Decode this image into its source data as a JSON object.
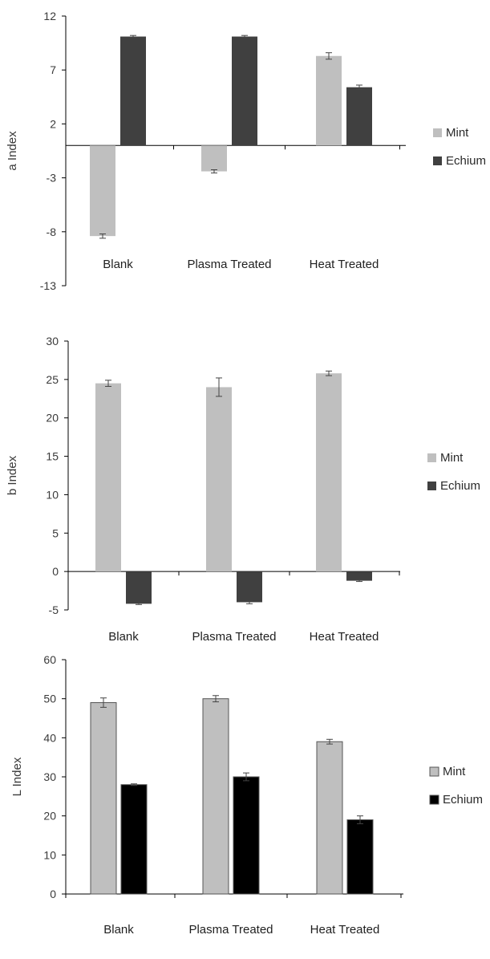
{
  "chart_data": [
    {
      "type": "bar",
      "title": "",
      "xlabel": "",
      "ylabel": "a Index",
      "ylim": [
        -13,
        12
      ],
      "yticks": [
        12,
        7,
        2,
        -3,
        -8,
        -13
      ],
      "categories": [
        "Blank",
        "Plasma Treated",
        "Heat Treated"
      ],
      "category_labels_position": "inside-bottom",
      "grid": false,
      "legend_position": "right",
      "series": [
        {
          "name": "Mint",
          "values": [
            -8.4,
            -2.4,
            8.3
          ],
          "errors": [
            0.2,
            0.15,
            0.3
          ],
          "color": "#bfbfbf"
        },
        {
          "name": "Echium",
          "values": [
            10.1,
            10.1,
            5.4
          ],
          "errors": [
            0.1,
            0.1,
            0.2
          ],
          "color": "#404040"
        }
      ]
    },
    {
      "type": "bar",
      "title": "",
      "xlabel": "",
      "ylabel": "b Index",
      "ylim": [
        -5,
        30
      ],
      "yticks": [
        30,
        25,
        20,
        15,
        10,
        5,
        0,
        -5
      ],
      "categories": [
        "Blank",
        "Plasma Treated",
        "Heat Treated"
      ],
      "category_labels_position": "below",
      "grid": false,
      "legend_position": "right",
      "series": [
        {
          "name": "Mint",
          "values": [
            24.5,
            24.0,
            25.8
          ],
          "errors": [
            0.4,
            1.2,
            0.3
          ],
          "color": "#bfbfbf"
        },
        {
          "name": "Echium",
          "values": [
            -4.2,
            -4.0,
            -1.2
          ],
          "errors": [
            0.1,
            0.2,
            0.1
          ],
          "color": "#404040"
        }
      ]
    },
    {
      "type": "bar",
      "title": "",
      "xlabel": "",
      "ylabel": "L Index",
      "ylim": [
        0,
        60
      ],
      "yticks": [
        60,
        50,
        40,
        30,
        20,
        10,
        0
      ],
      "categories": [
        "Blank",
        "Plasma Treated",
        "Heat Treated"
      ],
      "category_labels_position": "below",
      "grid": false,
      "legend_position": "right",
      "series": [
        {
          "name": "Mint",
          "values": [
            49.0,
            50.0,
            39.0
          ],
          "errors": [
            1.2,
            0.8,
            0.6
          ],
          "color": "#bfbfbf"
        },
        {
          "name": "Echium",
          "values": [
            28.0,
            30.0,
            19.0
          ],
          "errors": [
            0.2,
            1.0,
            1.0
          ],
          "color": "#000000"
        }
      ]
    }
  ]
}
